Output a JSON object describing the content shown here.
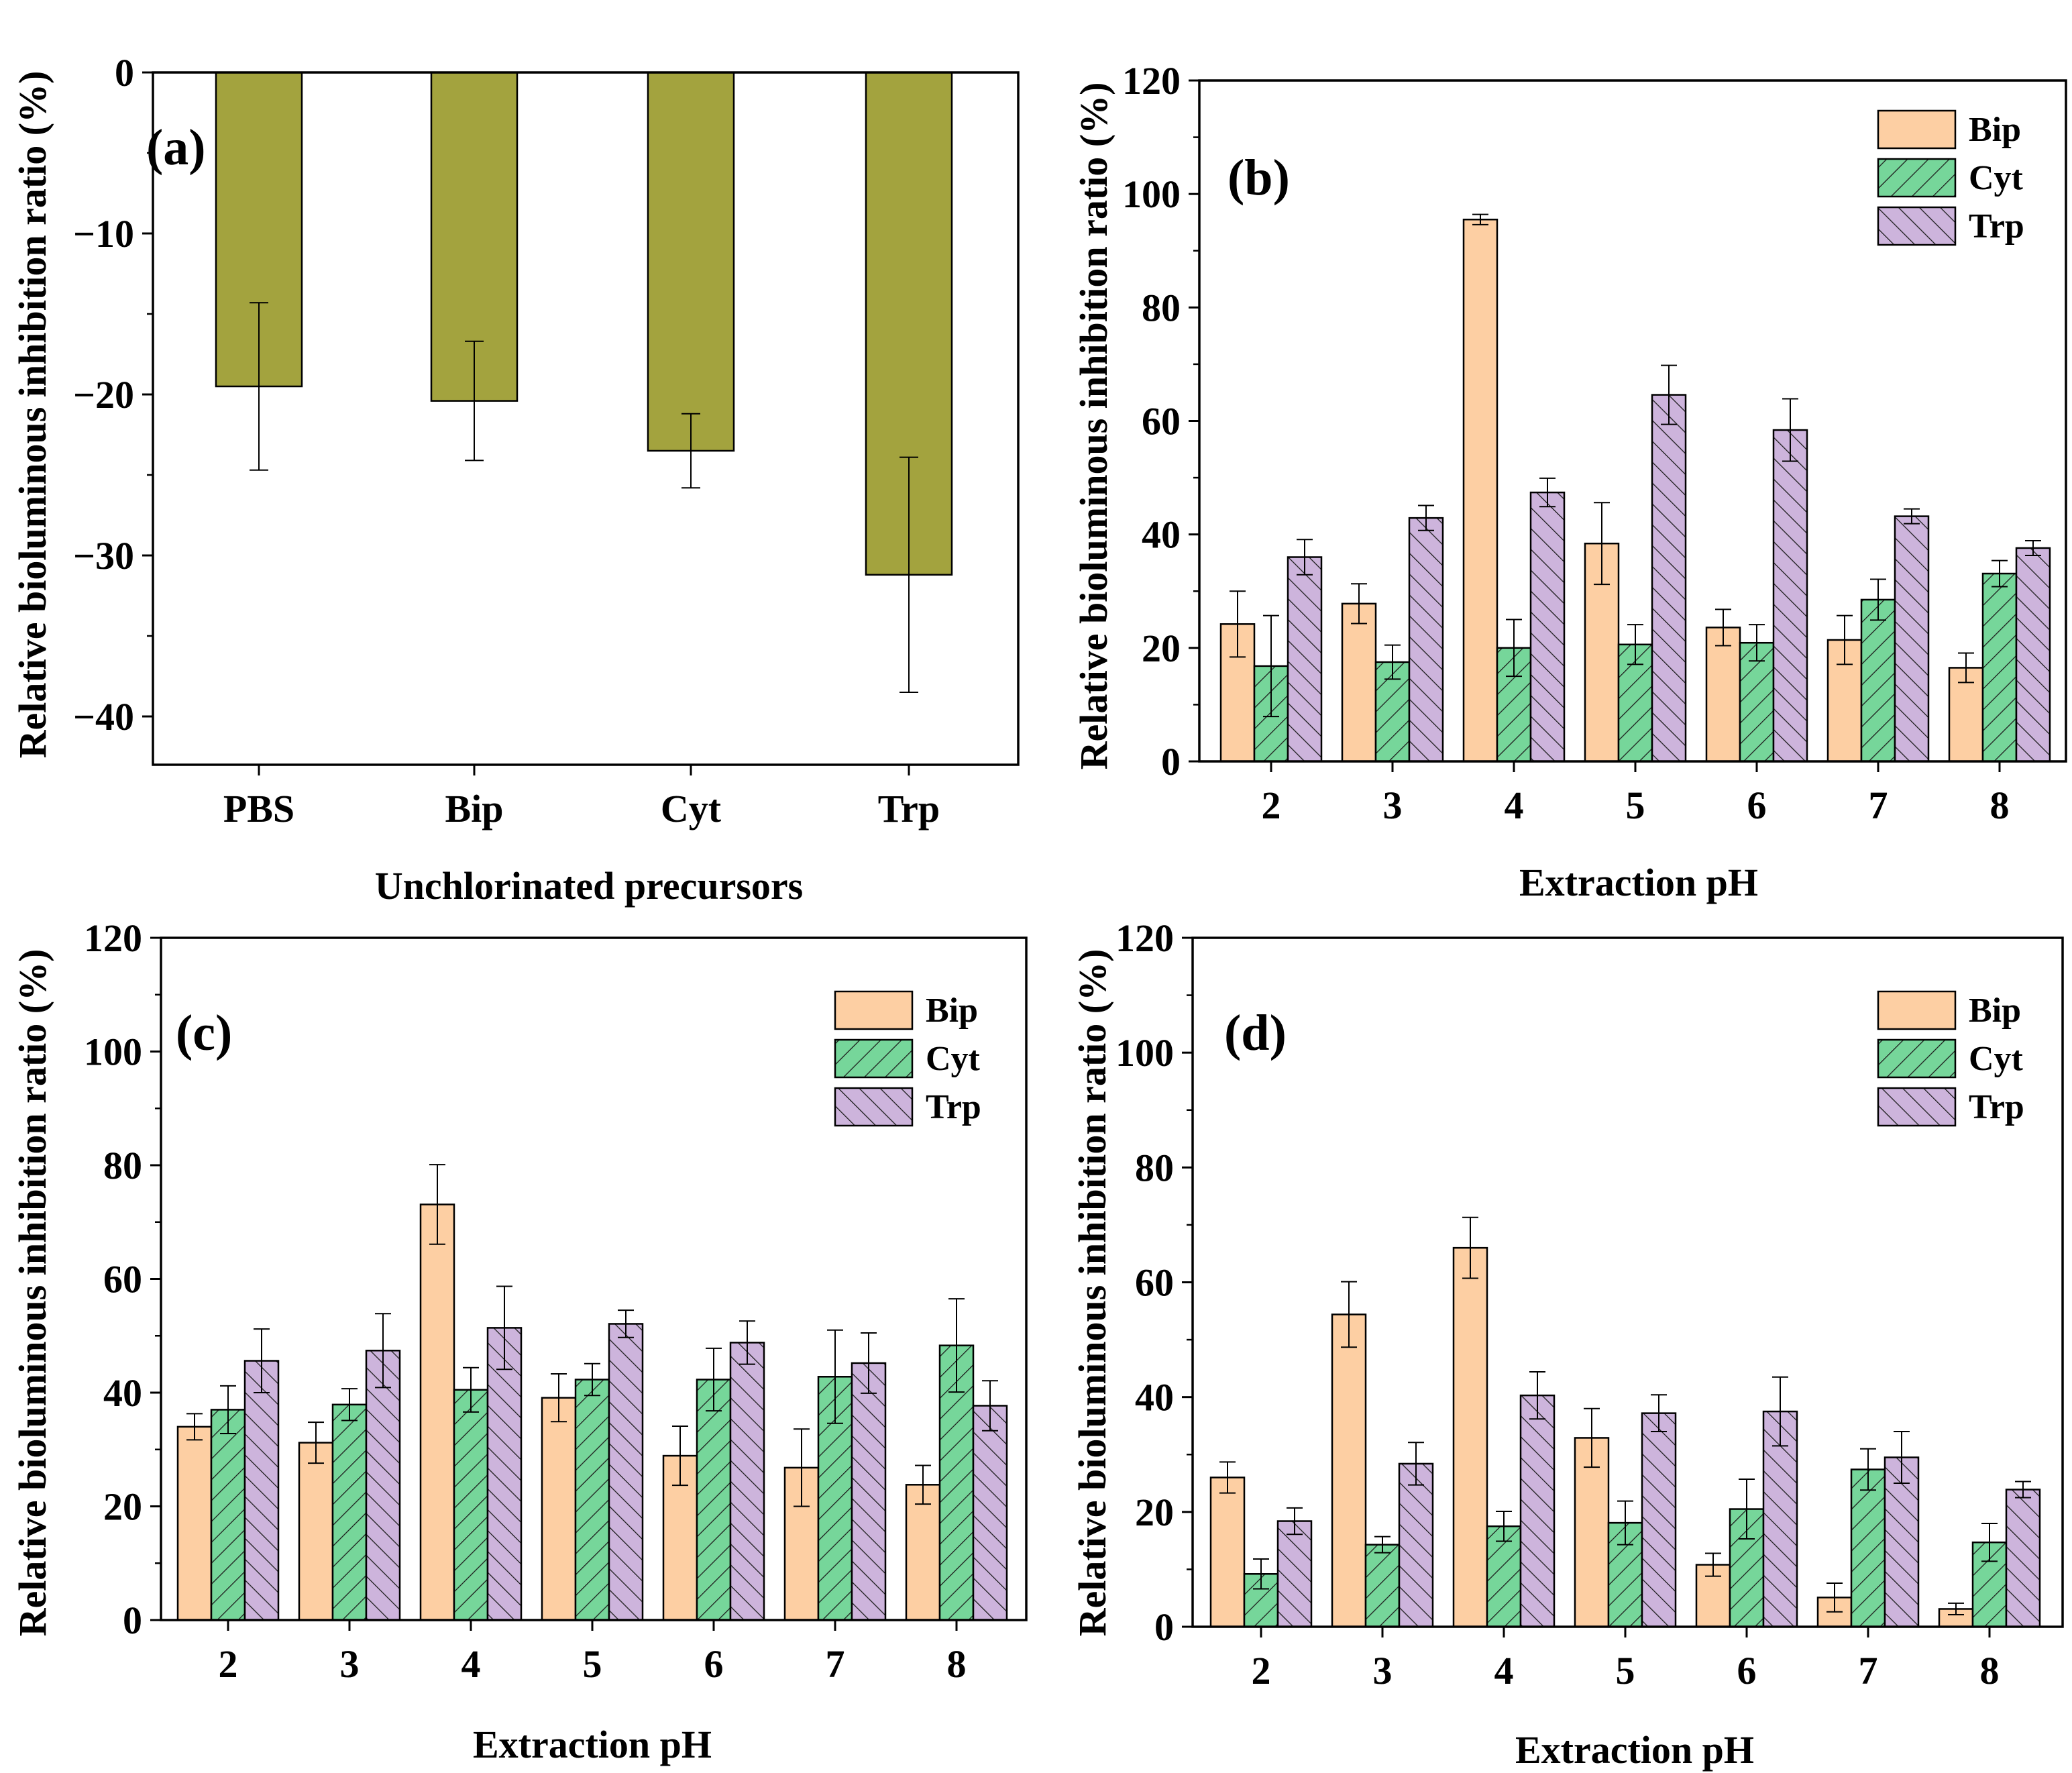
{
  "chart_data": [
    {
      "panel": "(a)",
      "type": "bar",
      "categories": [
        "PBS",
        "Bip",
        "Cyt",
        "Trp"
      ],
      "values": [
        -19.5,
        -20.4,
        -23.5,
        -31.2
      ],
      "errors": [
        5.2,
        3.7,
        2.3,
        7.3
      ],
      "color": "#a3a33e",
      "xlabel": "Unchlorinated precursors",
      "ylabel": "Relative bioluminous inhibition ratio (%)",
      "ylim": [
        -43,
        0
      ],
      "yticks": [
        0,
        -10,
        -20,
        -30,
        -40
      ],
      "ytick_labels": [
        "0",
        "−10",
        "−20",
        "−30",
        "−40"
      ]
    },
    {
      "panel": "(b)",
      "type": "bar",
      "categories": [
        "2",
        "3",
        "4",
        "5",
        "6",
        "7",
        "8"
      ],
      "series": [
        {
          "name": "Bip",
          "values": [
            24.2,
            27.8,
            95.5,
            38.4,
            23.6,
            21.4,
            16.5
          ],
          "errors": [
            5.8,
            3.5,
            0.9,
            7.2,
            3.2,
            4.3,
            2.6
          ]
        },
        {
          "name": "Cyt",
          "values": [
            16.8,
            17.5,
            20.0,
            20.6,
            20.9,
            28.5,
            33.1
          ],
          "errors": [
            8.9,
            3.0,
            5.0,
            3.5,
            3.2,
            3.6,
            2.3
          ]
        },
        {
          "name": "Trp",
          "values": [
            36.0,
            42.9,
            47.4,
            64.6,
            58.4,
            43.2,
            37.6
          ],
          "errors": [
            3.1,
            2.2,
            2.5,
            5.2,
            5.5,
            1.3,
            1.3
          ]
        }
      ],
      "xlabel": "Extraction pH",
      "ylabel": "Relative bioluminous inhibition ratio (%)",
      "ylim": [
        0,
        120
      ],
      "yticks": [
        0,
        20,
        40,
        60,
        80,
        100,
        120
      ],
      "legend": "top-right"
    },
    {
      "panel": "(c)",
      "type": "bar",
      "categories": [
        "2",
        "3",
        "4",
        "5",
        "6",
        "7",
        "8"
      ],
      "series": [
        {
          "name": "Bip",
          "values": [
            34.0,
            31.2,
            73.1,
            39.1,
            28.9,
            26.8,
            23.8
          ],
          "errors": [
            2.3,
            3.6,
            7.0,
            4.2,
            5.2,
            6.8,
            3.4
          ]
        },
        {
          "name": "Cyt",
          "values": [
            37.0,
            37.9,
            40.5,
            42.3,
            42.3,
            42.8,
            48.3
          ],
          "errors": [
            4.2,
            2.8,
            3.9,
            2.8,
            5.5,
            8.2,
            8.2
          ]
        },
        {
          "name": "Trp",
          "values": [
            45.6,
            47.4,
            51.4,
            52.1,
            48.8,
            45.2,
            37.7
          ],
          "errors": [
            5.6,
            6.5,
            7.3,
            2.4,
            3.8,
            5.3,
            4.4
          ]
        }
      ],
      "xlabel": "Extraction pH",
      "ylabel": "Relative bioluminous inhibition ratio (%)",
      "ylim": [
        0,
        120
      ],
      "yticks": [
        0,
        20,
        40,
        60,
        80,
        100,
        120
      ],
      "legend": "top-right"
    },
    {
      "panel": "(d)",
      "type": "bar",
      "categories": [
        "2",
        "3",
        "4",
        "5",
        "6",
        "7",
        "8"
      ],
      "series": [
        {
          "name": "Bip",
          "values": [
            26.0,
            54.4,
            66.0,
            32.9,
            10.8,
            5.1,
            3.1
          ],
          "errors": [
            2.7,
            5.7,
            5.3,
            5.1,
            2.0,
            2.5,
            1.0
          ]
        },
        {
          "name": "Cyt",
          "values": [
            9.2,
            14.3,
            17.5,
            18.1,
            20.5,
            27.4,
            14.7
          ],
          "errors": [
            2.6,
            1.4,
            2.6,
            3.8,
            5.2,
            3.6,
            3.3
          ]
        },
        {
          "name": "Trp",
          "values": [
            18.4,
            28.4,
            40.3,
            37.2,
            37.5,
            29.5,
            23.9
          ],
          "errors": [
            2.3,
            3.7,
            4.1,
            3.2,
            6.0,
            4.5,
            1.4
          ]
        }
      ],
      "xlabel": "Extraction pH",
      "ylabel": "Relative bioluminous inhibition ratio (%)",
      "ylim": [
        0,
        120
      ],
      "yticks": [
        0,
        20,
        40,
        60,
        80,
        100,
        120
      ],
      "legend": "top-right"
    }
  ],
  "series_colors": {
    "Bip": "#fdcfa3",
    "Cyt": "#76d69a",
    "Trp": "#cdb4dc"
  }
}
